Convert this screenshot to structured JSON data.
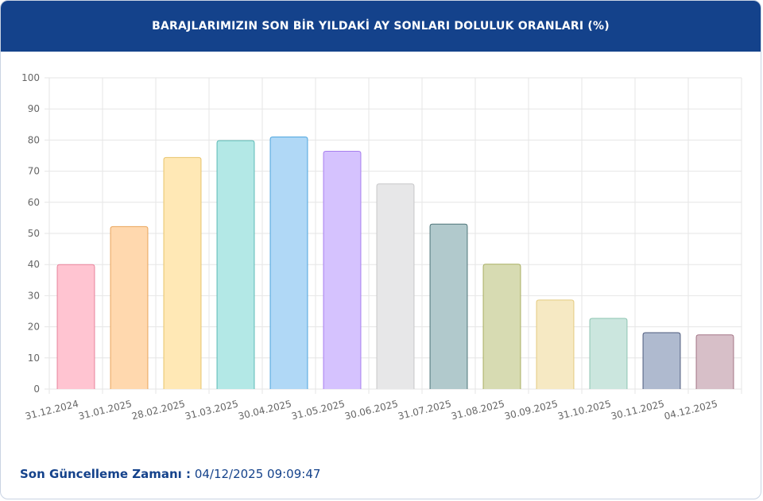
{
  "header": {
    "title": "BARAJLARIMIZIN SON BİR YILDAKİ AY SONLARI DOLULUK ORANLARI (%)"
  },
  "footer": {
    "label": "Son Güncelleme Zamanı :",
    "value": "04/12/2025 09:09:47"
  },
  "chart_data": {
    "type": "bar",
    "title": "BARAJLARIMIZIN SON BİR YILDAKİ AY SONLARI DOLULUK ORANLARI (%)",
    "xlabel": "",
    "ylabel": "",
    "ylim": [
      0,
      100
    ],
    "yticks": [
      0,
      10,
      20,
      30,
      40,
      50,
      60,
      70,
      80,
      90,
      100
    ],
    "grid": true,
    "categories": [
      "31.12.2024",
      "31.01.2025",
      "28.02.2025",
      "31.03.2025",
      "30.04.2025",
      "31.05.2025",
      "30.06.2025",
      "31.07.2025",
      "31.08.2025",
      "30.09.2025",
      "31.10.2025",
      "30.11.2025",
      "04.12.2025"
    ],
    "values": [
      40.0,
      52.2,
      74.4,
      79.8,
      81.0,
      76.4,
      65.9,
      53.0,
      40.1,
      28.6,
      22.7,
      18.1,
      17.4
    ],
    "fills": [
      "#ffc4d1",
      "#ffd8ae",
      "#ffe8b5",
      "#b3e8e6",
      "#b0d8f6",
      "#d5c2fe",
      "#e7e7e8",
      "#b1c9cc",
      "#d7dbb2",
      "#f6e9c3",
      "#cbe6de",
      "#afbacf",
      "#d7bfc8"
    ],
    "strokes": [
      "#e8839b",
      "#e9a55c",
      "#e8c46c",
      "#5bbab5",
      "#4ea6de",
      "#a77fee",
      "#c7c7c9",
      "#4d7478",
      "#a8ad62",
      "#e3cb7f",
      "#8dc5b2",
      "#4e5b7e",
      "#a37585"
    ]
  }
}
